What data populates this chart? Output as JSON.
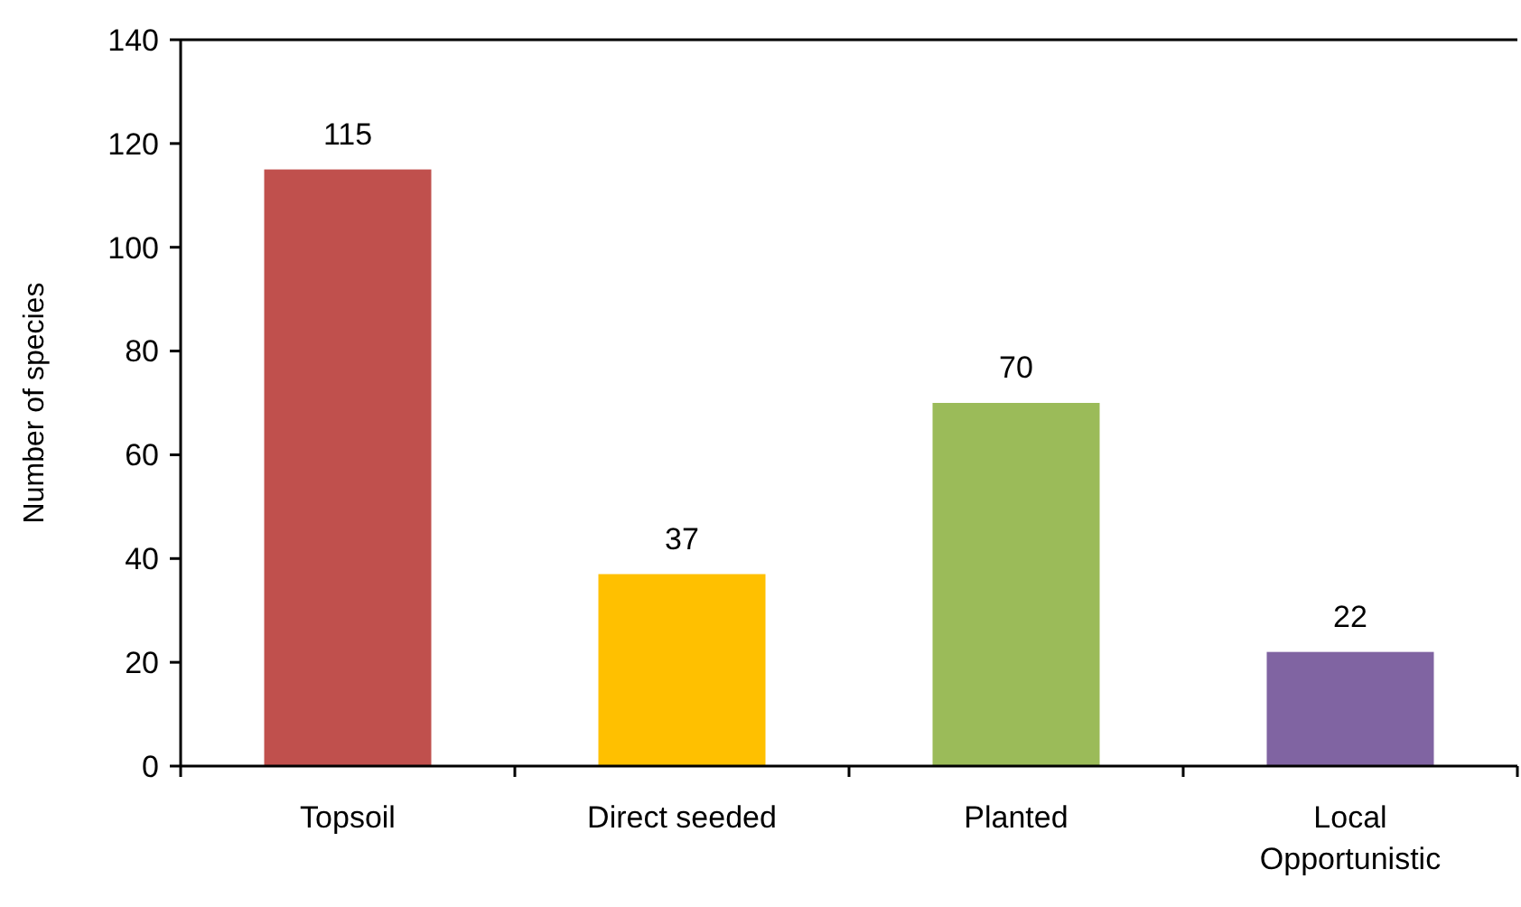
{
  "chart_data": {
    "type": "bar",
    "categories": [
      "Topsoil",
      "Direct seeded",
      "Planted",
      "Local Opportunistic"
    ],
    "values": [
      115,
      37,
      70,
      22
    ],
    "colors": [
      "#c0504d",
      "#ffc000",
      "#9bbb59",
      "#8064a2"
    ],
    "ylabel": "Number of species",
    "ylim": [
      0,
      140
    ],
    "yticks": [
      0,
      20,
      40,
      60,
      80,
      100,
      120,
      140
    ],
    "data_labels": true
  }
}
